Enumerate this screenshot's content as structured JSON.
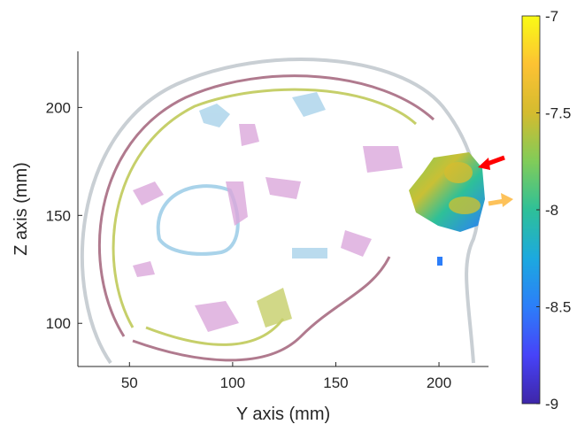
{
  "chart_data": {
    "type": "image",
    "xlabel": "Y axis (mm)",
    "ylabel": "Z axis (mm)",
    "xlim": [
      25,
      224
    ],
    "xticks": [
      50,
      100,
      150,
      200
    ],
    "ylim": [
      80,
      226
    ],
    "yticks": [
      100,
      150,
      200
    ],
    "colorbar": {
      "clim": [
        -9,
        -7
      ],
      "ticks": [
        -9,
        -8.5,
        -8,
        -7.5,
        -7
      ],
      "colormap": [
        "#3e26a8",
        "#4743f8",
        "#2c7ef9",
        "#1ca9df",
        "#2ec098",
        "#81cc59",
        "#d4bb2f",
        "#fdc233",
        "#f9fb15"
      ]
    }
  }
}
